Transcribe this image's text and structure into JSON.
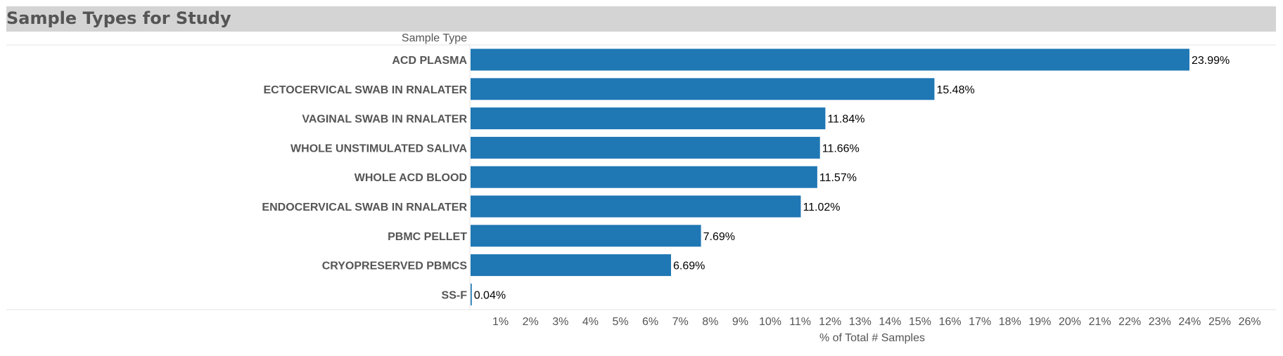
{
  "chart_data": {
    "type": "bar",
    "orientation": "horizontal",
    "title": "Sample Types for Study",
    "row_header": "Sample Type",
    "xlabel": "% of Total # Samples",
    "xlim": [
      0,
      26.7
    ],
    "x_ticks": [
      "1%",
      "2%",
      "3%",
      "4%",
      "5%",
      "6%",
      "7%",
      "8%",
      "9%",
      "10%",
      "11%",
      "12%",
      "13%",
      "14%",
      "15%",
      "16%",
      "17%",
      "18%",
      "19%",
      "20%",
      "21%",
      "22%",
      "23%",
      "24%",
      "25%",
      "26%"
    ],
    "x_tick_values": [
      1,
      2,
      3,
      4,
      5,
      6,
      7,
      8,
      9,
      10,
      11,
      12,
      13,
      14,
      15,
      16,
      17,
      18,
      19,
      20,
      21,
      22,
      23,
      24,
      25,
      26
    ],
    "categories": [
      "ACD PLASMA",
      "ECTOCERVICAL SWAB IN RNALATER",
      "VAGINAL SWAB IN RNALATER",
      "WHOLE UNSTIMULATED SALIVA",
      "WHOLE ACD BLOOD",
      "ENDOCERVICAL SWAB IN RNALATER",
      "PBMC PELLET",
      "CRYOPRESERVED PBMCS",
      "SS-F"
    ],
    "values": [
      23.99,
      15.48,
      11.84,
      11.66,
      11.57,
      11.02,
      7.69,
      6.69,
      0.04
    ],
    "value_labels": [
      "23.99%",
      "15.48%",
      "11.84%",
      "11.66%",
      "11.57%",
      "11.02%",
      "7.69%",
      "6.69%",
      "0.04%"
    ],
    "bar_color": "#1f77b4",
    "grid": false,
    "legend": "none"
  }
}
